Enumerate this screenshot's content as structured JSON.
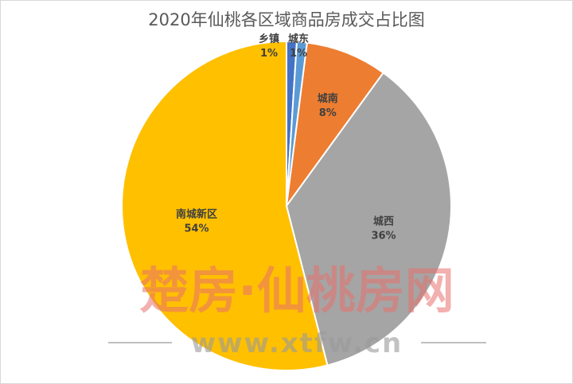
{
  "chart_data": {
    "type": "pie",
    "title": "2020年仙桃各区域商品房成交占比图",
    "slices": [
      {
        "label": "乡镇",
        "value": 1,
        "pct_label": "1%",
        "color": "#4472c4"
      },
      {
        "label": "城东",
        "value": 1,
        "pct_label": "1%",
        "color": "#5b9bd5"
      },
      {
        "label": "城南",
        "value": 8,
        "pct_label": "8%",
        "color": "#ed7d31"
      },
      {
        "label": "城西",
        "value": 36,
        "pct_label": "36%",
        "color": "#a5a5a5"
      },
      {
        "label": "南城新区",
        "value": 54,
        "pct_label": "54%",
        "color": "#ffc000"
      }
    ],
    "legend": "none"
  },
  "watermark": {
    "cn": "楚房·仙桃房网",
    "url": "www.xtfw.cn"
  }
}
